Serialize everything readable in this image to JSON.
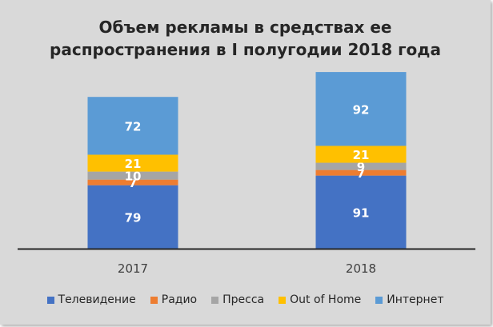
{
  "chart_data": {
    "type": "bar",
    "stacked": true,
    "title": "Объем рекламы в средствах ее распространения в I полугодии 2018 года",
    "title_lines": [
      "Объем рекламы в средствах ее",
      "распространения в I полугодии 2018 года"
    ],
    "categories": [
      "2017",
      "2018"
    ],
    "series": [
      {
        "name": "Телевидение",
        "color": "#4472c4",
        "values": [
          79,
          91
        ]
      },
      {
        "name": "Радио",
        "color": "#ed7d31",
        "values": [
          7,
          7
        ]
      },
      {
        "name": "Пресса",
        "color": "#a5a5a5",
        "values": [
          10,
          9
        ]
      },
      {
        "name": "Out of Home",
        "color": "#ffc000",
        "values": [
          21,
          21
        ]
      },
      {
        "name": "Интернет",
        "color": "#5b9bd5",
        "values": [
          72,
          92
        ]
      }
    ],
    "ylim": [
      0,
      240
    ],
    "grid": false,
    "legend": "bottom",
    "data_labels": true
  }
}
